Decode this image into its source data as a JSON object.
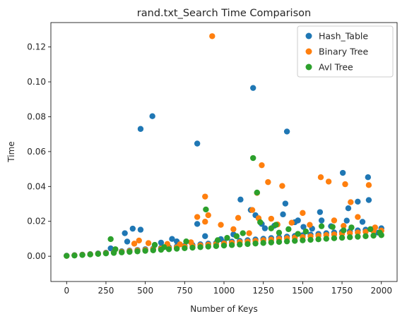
{
  "chart_data": {
    "type": "scatter",
    "title": "rand.txt_Search Time Comparison",
    "xlabel": "Number of Keys",
    "ylabel": "Time",
    "xlim": [
      -100,
      2100
    ],
    "ylim": [
      -0.0145,
      0.134
    ],
    "xticks": [
      0,
      250,
      500,
      750,
      1000,
      1250,
      1500,
      1750,
      2000
    ],
    "yticks": [
      0.0,
      0.02,
      0.04,
      0.06,
      0.08,
      0.1,
      0.12
    ],
    "ytick_labels": [
      "0.00",
      "0.02",
      "0.04",
      "0.06",
      "0.08",
      "0.10",
      "0.12"
    ],
    "grid": false,
    "legend_position": "top-right",
    "series": [
      {
        "name": "Hash_Table",
        "color": "#1f77b4",
        "points": [
          [
            0,
            0.0003
          ],
          [
            50,
            0.0006
          ],
          [
            100,
            0.0009
          ],
          [
            150,
            0.0012
          ],
          [
            200,
            0.0016
          ],
          [
            250,
            0.002
          ],
          [
            300,
            0.0024
          ],
          [
            350,
            0.0028
          ],
          [
            400,
            0.0032
          ],
          [
            450,
            0.0036
          ],
          [
            500,
            0.004
          ],
          [
            550,
            0.0044
          ],
          [
            600,
            0.0048
          ],
          [
            650,
            0.0052
          ],
          [
            700,
            0.0056
          ],
          [
            750,
            0.006
          ],
          [
            800,
            0.0064
          ],
          [
            850,
            0.0068
          ],
          [
            900,
            0.0072
          ],
          [
            950,
            0.0076
          ],
          [
            1000,
            0.008
          ],
          [
            1050,
            0.0084
          ],
          [
            1100,
            0.0088
          ],
          [
            1150,
            0.0092
          ],
          [
            1200,
            0.0096
          ],
          [
            1250,
            0.01
          ],
          [
            1300,
            0.0104
          ],
          [
            1350,
            0.0108
          ],
          [
            1400,
            0.0112
          ],
          [
            1450,
            0.0116
          ],
          [
            1500,
            0.012
          ],
          [
            1550,
            0.0124
          ],
          [
            1600,
            0.0128
          ],
          [
            1650,
            0.0132
          ],
          [
            1700,
            0.0136
          ],
          [
            1750,
            0.014
          ],
          [
            1800,
            0.0144
          ],
          [
            1850,
            0.0148
          ],
          [
            1900,
            0.0152
          ],
          [
            1950,
            0.0156
          ],
          [
            2000,
            0.016
          ],
          [
            470,
            0.073
          ],
          [
            545,
            0.0803
          ],
          [
            830,
            0.0646
          ],
          [
            1185,
            0.0965
          ],
          [
            1400,
            0.0715
          ],
          [
            1105,
            0.0325
          ],
          [
            1170,
            0.0265
          ],
          [
            1200,
            0.0235
          ],
          [
            1375,
            0.024
          ],
          [
            1390,
            0.0302
          ],
          [
            1610,
            0.0253
          ],
          [
            1755,
            0.0478
          ],
          [
            1790,
            0.0275
          ],
          [
            1850,
            0.0313
          ],
          [
            1915,
            0.0453
          ],
          [
            1920,
            0.0322
          ],
          [
            1780,
            0.0204
          ],
          [
            1620,
            0.0205
          ],
          [
            1505,
            0.0168
          ],
          [
            1470,
            0.0205
          ],
          [
            370,
            0.0132
          ],
          [
            420,
            0.0158
          ],
          [
            470,
            0.0152
          ],
          [
            385,
            0.0084
          ],
          [
            670,
            0.0099
          ],
          [
            700,
            0.0085
          ],
          [
            830,
            0.0185
          ],
          [
            880,
            0.0115
          ],
          [
            980,
            0.0098
          ],
          [
            1060,
            0.0125
          ],
          [
            1240,
            0.0185
          ],
          [
            1260,
            0.016
          ],
          [
            1320,
            0.0175
          ],
          [
            1450,
            0.0195
          ],
          [
            1560,
            0.0158
          ],
          [
            1680,
            0.0172
          ],
          [
            1880,
            0.0197
          ],
          [
            1980,
            0.0135
          ],
          [
            600,
            0.0078
          ],
          [
            280,
            0.0045
          ]
        ]
      },
      {
        "name": "Binary Tree",
        "color": "#ff7f0e",
        "points": [
          [
            0,
            0.0002
          ],
          [
            50,
            0.0005
          ],
          [
            100,
            0.0008
          ],
          [
            150,
            0.0011
          ],
          [
            200,
            0.0014
          ],
          [
            250,
            0.0018
          ],
          [
            300,
            0.0021
          ],
          [
            350,
            0.0025
          ],
          [
            400,
            0.0029
          ],
          [
            450,
            0.0033
          ],
          [
            500,
            0.0036
          ],
          [
            550,
            0.004
          ],
          [
            600,
            0.0044
          ],
          [
            650,
            0.0047
          ],
          [
            700,
            0.0051
          ],
          [
            750,
            0.0055
          ],
          [
            800,
            0.0058
          ],
          [
            850,
            0.0062
          ],
          [
            900,
            0.0066
          ],
          [
            950,
            0.007
          ],
          [
            1000,
            0.0073
          ],
          [
            1050,
            0.0077
          ],
          [
            1100,
            0.0081
          ],
          [
            1150,
            0.0084
          ],
          [
            1200,
            0.0088
          ],
          [
            1250,
            0.0092
          ],
          [
            1300,
            0.0095
          ],
          [
            1350,
            0.0099
          ],
          [
            1400,
            0.0103
          ],
          [
            1450,
            0.0107
          ],
          [
            1500,
            0.011
          ],
          [
            1550,
            0.0114
          ],
          [
            1600,
            0.0118
          ],
          [
            1650,
            0.0121
          ],
          [
            1700,
            0.0125
          ],
          [
            1750,
            0.0129
          ],
          [
            1800,
            0.0132
          ],
          [
            1850,
            0.0136
          ],
          [
            1900,
            0.014
          ],
          [
            1950,
            0.0144
          ],
          [
            2000,
            0.0147
          ],
          [
            925,
            0.1262
          ],
          [
            1240,
            0.0522
          ],
          [
            1615,
            0.0453
          ],
          [
            1665,
            0.0428
          ],
          [
            1280,
            0.0425
          ],
          [
            1370,
            0.0403
          ],
          [
            1770,
            0.0413
          ],
          [
            1920,
            0.0408
          ],
          [
            880,
            0.0342
          ],
          [
            900,
            0.0235
          ],
          [
            830,
            0.0225
          ],
          [
            1210,
            0.0363
          ],
          [
            1180,
            0.0265
          ],
          [
            1220,
            0.0218
          ],
          [
            1300,
            0.0215
          ],
          [
            1090,
            0.022
          ],
          [
            1805,
            0.031
          ],
          [
            1500,
            0.0248
          ],
          [
            1545,
            0.018
          ],
          [
            1700,
            0.0205
          ],
          [
            1850,
            0.0225
          ],
          [
            880,
            0.0198
          ],
          [
            980,
            0.018
          ],
          [
            460,
            0.009
          ],
          [
            520,
            0.0075
          ],
          [
            430,
            0.0072
          ],
          [
            640,
            0.007
          ],
          [
            790,
            0.008
          ],
          [
            1340,
            0.0182
          ],
          [
            1430,
            0.0192
          ],
          [
            1160,
            0.0132
          ],
          [
            1060,
            0.0155
          ],
          [
            1760,
            0.0174
          ],
          [
            1960,
            0.0165
          ],
          [
            720,
            0.0068
          ]
        ]
      },
      {
        "name": "Avl Tree",
        "color": "#2ca02c",
        "points": [
          [
            0,
            0.0002
          ],
          [
            50,
            0.0004
          ],
          [
            100,
            0.0007
          ],
          [
            150,
            0.001
          ],
          [
            200,
            0.0013
          ],
          [
            250,
            0.0016
          ],
          [
            300,
            0.0019
          ],
          [
            350,
            0.0022
          ],
          [
            400,
            0.0025
          ],
          [
            450,
            0.0028
          ],
          [
            500,
            0.0031
          ],
          [
            550,
            0.0034
          ],
          [
            600,
            0.0037
          ],
          [
            650,
            0.004
          ],
          [
            700,
            0.0043
          ],
          [
            750,
            0.0046
          ],
          [
            800,
            0.0049
          ],
          [
            850,
            0.0052
          ],
          [
            900,
            0.0055
          ],
          [
            950,
            0.0058
          ],
          [
            1000,
            0.0061
          ],
          [
            1050,
            0.0064
          ],
          [
            1100,
            0.0067
          ],
          [
            1150,
            0.007
          ],
          [
            1200,
            0.0073
          ],
          [
            1250,
            0.0076
          ],
          [
            1300,
            0.0079
          ],
          [
            1350,
            0.0082
          ],
          [
            1400,
            0.0085
          ],
          [
            1450,
            0.0088
          ],
          [
            1500,
            0.0091
          ],
          [
            1550,
            0.0094
          ],
          [
            1600,
            0.0097
          ],
          [
            1650,
            0.01
          ],
          [
            1700,
            0.0103
          ],
          [
            1750,
            0.0106
          ],
          [
            1800,
            0.0109
          ],
          [
            1850,
            0.0112
          ],
          [
            1900,
            0.0115
          ],
          [
            1950,
            0.0118
          ],
          [
            2000,
            0.0121
          ],
          [
            1185,
            0.0563
          ],
          [
            1210,
            0.0365
          ],
          [
            885,
            0.0268
          ],
          [
            1230,
            0.0195
          ],
          [
            1330,
            0.018
          ],
          [
            1300,
            0.016
          ],
          [
            1410,
            0.0155
          ],
          [
            1620,
            0.0172
          ],
          [
            1690,
            0.0168
          ],
          [
            1810,
            0.0165
          ],
          [
            1930,
            0.0155
          ],
          [
            280,
            0.0098
          ],
          [
            310,
            0.004
          ],
          [
            560,
            0.0065
          ],
          [
            620,
            0.0052
          ],
          [
            760,
            0.0085
          ],
          [
            1020,
            0.0105
          ],
          [
            1120,
            0.0132
          ],
          [
            1520,
            0.0142
          ],
          [
            1760,
            0.0148
          ],
          [
            1990,
            0.0135
          ],
          [
            1470,
            0.0128
          ],
          [
            960,
            0.0092
          ],
          [
            1080,
            0.0115
          ],
          [
            1350,
            0.0135
          ]
        ]
      }
    ]
  }
}
